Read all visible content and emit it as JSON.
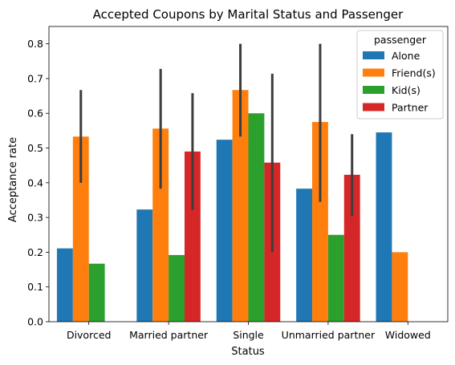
{
  "chart_data": {
    "type": "bar",
    "title": "Accepted Coupons by Marital Status and Passenger",
    "xlabel": "Status",
    "ylabel": "Acceptance rate",
    "categories": [
      "Divorced",
      "Married partner",
      "Single",
      "Unmarried partner",
      "Widowed"
    ],
    "ylim": [
      0,
      0.85
    ],
    "yticks": [
      "0.0",
      "0.1",
      "0.2",
      "0.3",
      "0.4",
      "0.5",
      "0.6",
      "0.7",
      "0.8"
    ],
    "grid": false,
    "legend": {
      "title": "passenger",
      "placement": "top-right"
    },
    "series": [
      {
        "name": "Alone",
        "color": "#1f77b4",
        "values": [
          0.211,
          0.323,
          0.524,
          0.383,
          0.545
        ],
        "err_low": [
          null,
          null,
          null,
          null,
          null
        ],
        "err_high": [
          null,
          null,
          null,
          null,
          null
        ]
      },
      {
        "name": "Friend(s)",
        "color": "#ff7f0e",
        "values": [
          0.533,
          0.556,
          0.667,
          0.575,
          0.2
        ],
        "err_low": [
          0.4,
          0.383,
          0.533,
          0.345,
          null
        ],
        "err_high": [
          0.667,
          0.728,
          0.8,
          0.8,
          null
        ]
      },
      {
        "name": "Kid(s)",
        "color": "#2ca02c",
        "values": [
          0.167,
          0.192,
          0.6,
          0.25,
          null
        ],
        "err_low": [
          null,
          null,
          null,
          null,
          null
        ],
        "err_high": [
          null,
          null,
          null,
          null,
          null
        ]
      },
      {
        "name": "Partner",
        "color": "#d62728",
        "values": [
          null,
          0.49,
          0.458,
          0.423,
          null
        ],
        "err_low": [
          null,
          0.322,
          0.2,
          0.304,
          null
        ],
        "err_high": [
          null,
          0.658,
          0.714,
          0.54,
          null
        ]
      }
    ]
  }
}
